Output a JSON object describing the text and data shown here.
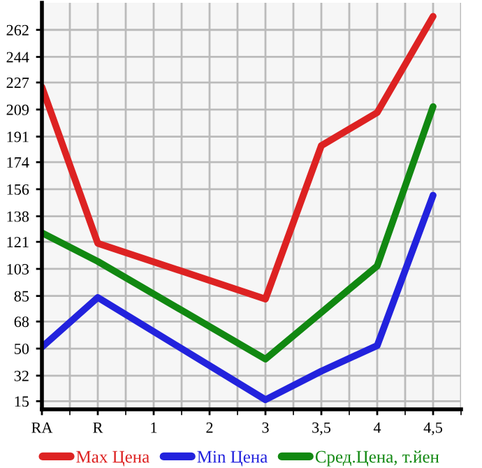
{
  "chart_data": {
    "type": "line",
    "categories": [
      "RA",
      "R",
      "1",
      "2",
      "3",
      "3,5",
      "4",
      "4,5"
    ],
    "series": [
      {
        "name": "Max Цена",
        "color": "#dd2222",
        "values": [
          224,
          120,
          null,
          null,
          83,
          185,
          207,
          271
        ]
      },
      {
        "name": "Min Цена",
        "color": "#2222dd",
        "values": [
          51,
          84,
          null,
          null,
          16,
          35,
          52,
          152
        ]
      },
      {
        "name": "Сред.Цена, т.йен",
        "color": "#118811",
        "values": [
          127,
          108,
          null,
          null,
          43,
          74,
          105,
          211
        ]
      }
    ],
    "ylim": [
      9.6,
      280
    ],
    "yticks": [
      15,
      32,
      50,
      68,
      85,
      103,
      121,
      138,
      156,
      174,
      191,
      209,
      227,
      244,
      262
    ],
    "grid": true,
    "legend": "bottom",
    "marker": "none",
    "line_style": "solid"
  }
}
